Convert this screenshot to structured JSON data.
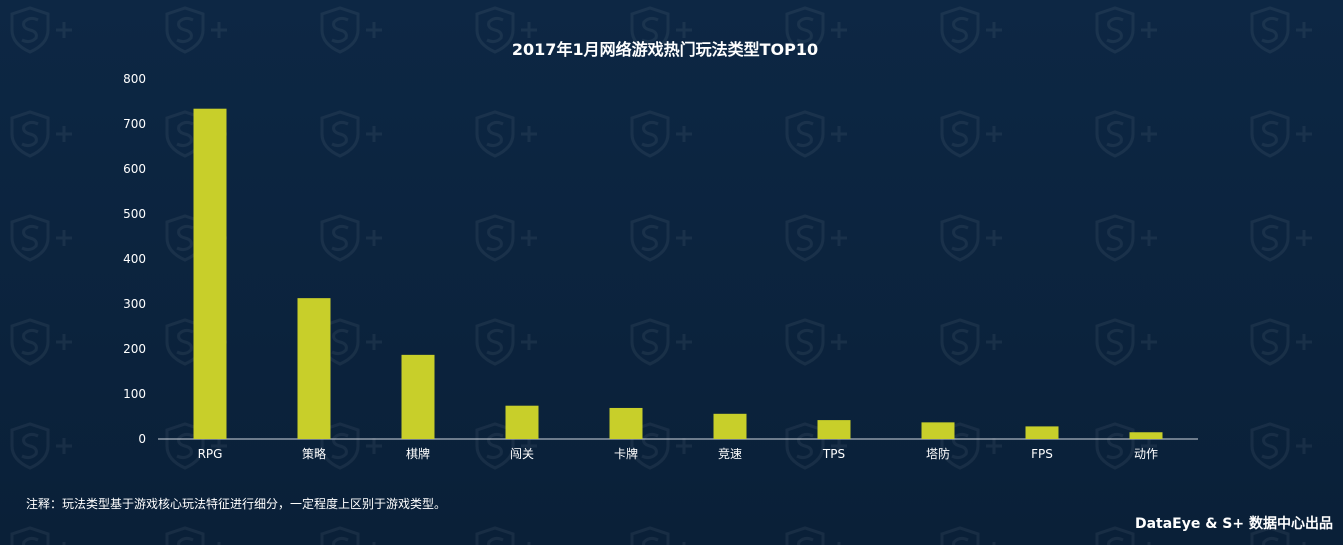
{
  "chart_data": {
    "type": "bar",
    "title": "2017年1月网络游戏热门玩法类型TOP10",
    "categories": [
      "RPG",
      "策略",
      "棋牌",
      "闯关",
      "卡牌",
      "竞速",
      "TPS",
      "塔防",
      "FPS",
      "动作"
    ],
    "values": [
      734,
      313,
      187,
      74,
      69,
      56,
      42,
      37,
      28,
      15
    ],
    "ylim": [
      0,
      800
    ],
    "yticks": [
      0,
      100,
      200,
      300,
      400,
      500,
      600,
      700,
      800
    ],
    "xlabel": "",
    "ylabel": "",
    "grid": false,
    "bar_color": "#c8cf2a"
  },
  "footnote": "注释：玩法类型基于游戏核心玩法特征进行细分，一定程度上区别于游戏类型。",
  "credit": "DataEye & S+ 数据中心出品",
  "colors": {
    "background": "#0b2440",
    "bar": "#c8cf2a",
    "text": "#ffffff"
  }
}
